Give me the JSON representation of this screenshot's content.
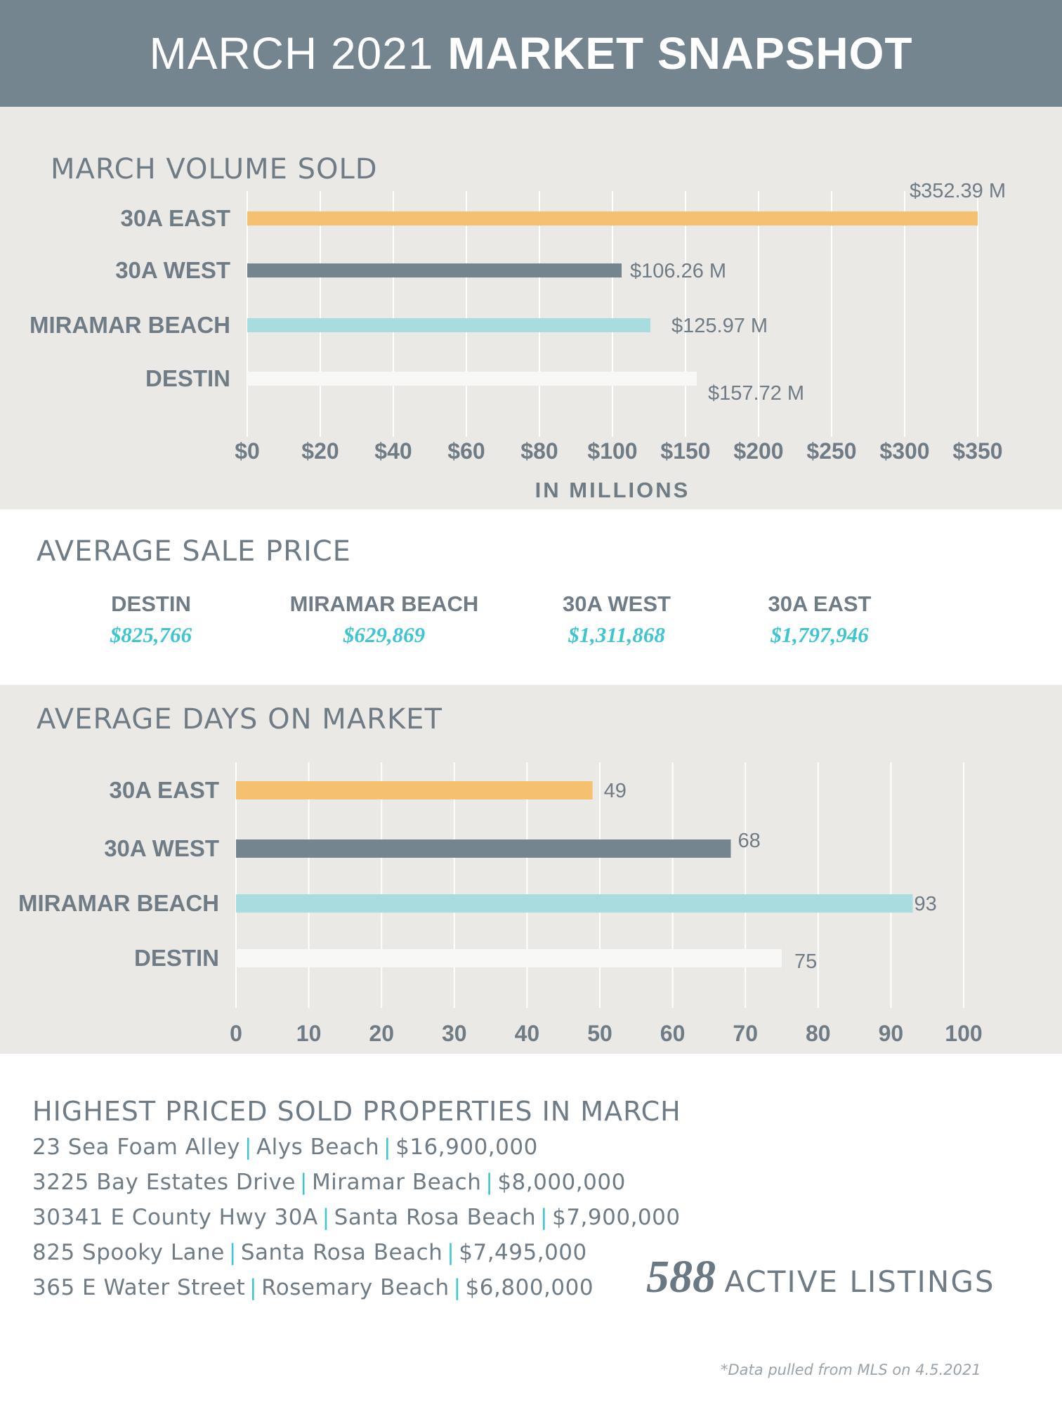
{
  "header": {
    "title_light": "MARCH 2021",
    "title_bold": "MARKET SNAPSHOT"
  },
  "colors": {
    "header_bg": "#748590",
    "panel_bg": "#ebe9e6",
    "orange": "#f5c170",
    "slate": "#748590",
    "aqua": "#a9dcdf",
    "white_bar": "#f8f8f7",
    "accent": "#3fc5cd"
  },
  "chart_data": [
    {
      "type": "bar",
      "orientation": "horizontal",
      "title": "MARCH VOLUME SOLD",
      "xlabel": "IN MILLIONS",
      "categories": [
        "30A EAST",
        "30A WEST",
        "MIRAMAR BEACH",
        "DESTIN"
      ],
      "values": [
        352.39,
        106.26,
        125.97,
        157.72
      ],
      "value_labels": [
        "$352.39 M",
        "$106.26 M",
        "$125.97 M",
        "$157.72 M"
      ],
      "bar_colors": [
        "#f5c170",
        "#748590",
        "#a9dcdf",
        "#f8f8f7"
      ],
      "tick_labels": [
        "$0",
        "$20",
        "$40",
        "$60",
        "$80",
        "$100",
        "$150",
        "$200",
        "$250",
        "$300",
        "$350"
      ],
      "tick_values": [
        0,
        20,
        40,
        60,
        80,
        100,
        150,
        200,
        250,
        300,
        350
      ],
      "grid": true
    },
    {
      "type": "bar",
      "orientation": "horizontal",
      "title": "AVERAGE DAYS ON MARKET",
      "categories": [
        "30A EAST",
        "30A WEST",
        "MIRAMAR BEACH",
        "DESTIN"
      ],
      "values": [
        49,
        68,
        93,
        75
      ],
      "value_labels": [
        "49",
        "68",
        "93",
        "75"
      ],
      "bar_colors": [
        "#f5c170",
        "#748590",
        "#a9dcdf",
        "#f8f8f7"
      ],
      "tick_labels": [
        "0",
        "10",
        "20",
        "30",
        "40",
        "50",
        "60",
        "70",
        "80",
        "90",
        "100"
      ],
      "tick_values": [
        0,
        10,
        20,
        30,
        40,
        50,
        60,
        70,
        80,
        90,
        100
      ],
      "xlim": [
        0,
        100
      ],
      "grid": true
    }
  ],
  "avg_sale": {
    "title": "AVERAGE SALE PRICE",
    "items": [
      {
        "city": "DESTIN",
        "price": "$825,766"
      },
      {
        "city": "MIRAMAR BEACH",
        "price": "$629,869"
      },
      {
        "city": "30A WEST",
        "price": "$1,311,868"
      },
      {
        "city": "30A EAST",
        "price": "$1,797,946"
      }
    ]
  },
  "highest": {
    "title": "HIGHEST PRICED SOLD PROPERTIES IN MARCH",
    "rows": [
      {
        "address": "23 Sea Foam Alley",
        "area": "Alys Beach",
        "price": "$16,900,000"
      },
      {
        "address": "3225 Bay Estates Drive",
        "area": "Miramar Beach",
        "price": "$8,000,000"
      },
      {
        "address": "30341 E County Hwy 30A",
        "area": "Santa Rosa Beach",
        "price": "$7,900,000"
      },
      {
        "address": "825 Spooky Lane",
        "area": "Santa Rosa Beach",
        "price": "$7,495,000"
      },
      {
        "address": "365 E Water Street",
        "area": "Rosemary Beach",
        "price": "$6,800,000"
      }
    ],
    "separator": "|"
  },
  "active_listings": {
    "count": "588",
    "label": "ACTIVE LISTINGS"
  },
  "footnote": "*Data pulled from MLS on 4.5.2021"
}
